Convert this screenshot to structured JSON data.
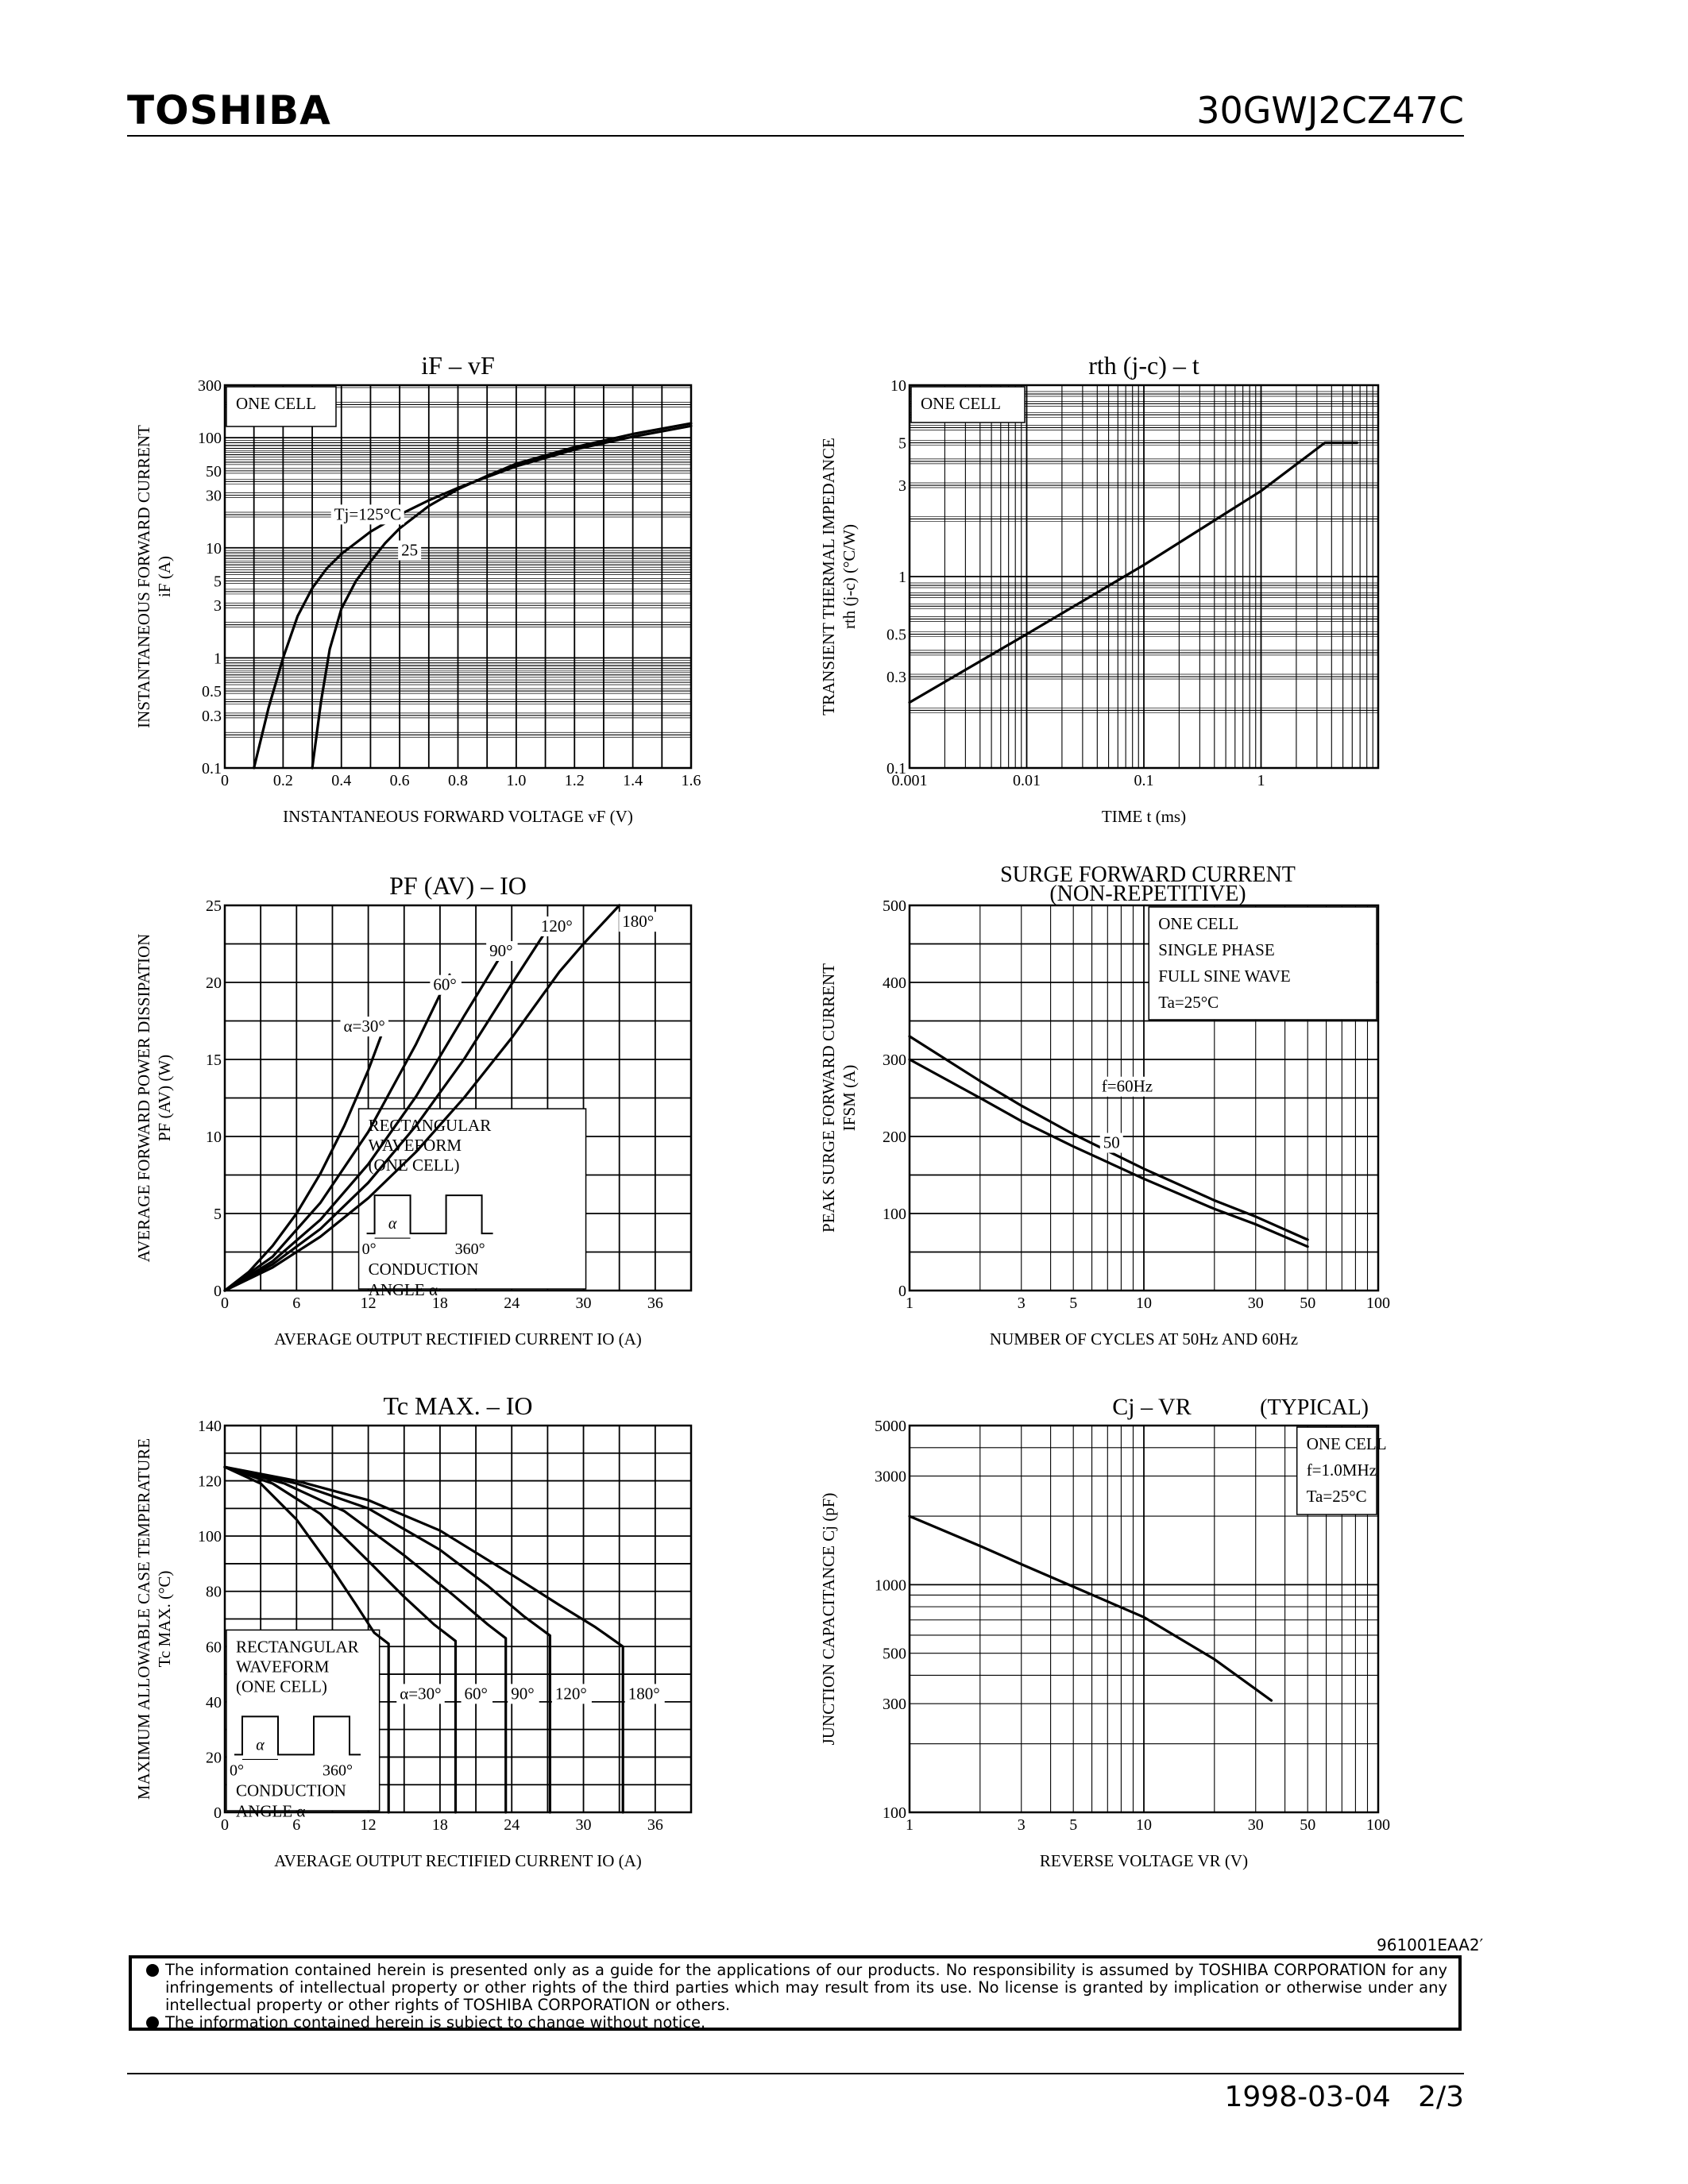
{
  "header": {
    "brand": "TOSHIBA",
    "part_number": "30GWJ2CZ47C"
  },
  "footer": {
    "doc_code": "961001EAA2′",
    "disclaimer_1": "The information contained herein is presented only as a guide for the applications of our products. No responsibility is assumed by TOSHIBA CORPORATION for any infringements of intellectual property or other rights of the third parties which may result from its use. No license is granted by implication or otherwise under any intellectual property or other rights of TOSHIBA CORPORATION or others.",
    "disclaimer_2": "The information contained herein is subject to change without notice.",
    "date": "1998-03-04",
    "page": "2/3"
  },
  "chart_data": [
    {
      "type": "line",
      "title": "iF – vF",
      "xlabel": "INSTANTANEOUS FORWARD VOLTAGE  vF  (V)",
      "ylabel": "INSTANTANEOUS FORWARD CURRENT",
      "ylabel2": "iF  (A)",
      "xscale": "linear",
      "yscale": "log",
      "xlim": [
        0,
        1.6
      ],
      "ylim": [
        0.1,
        300
      ],
      "xticks": [
        "0",
        "0.2",
        "0.4",
        "0.6",
        "0.8",
        "1.0",
        "1.2",
        "1.4",
        "1.6"
      ],
      "yticks": [
        "0.1",
        "0.3",
        "0.5",
        "1",
        "3",
        "5",
        "10",
        "30",
        "50",
        "100",
        "300"
      ],
      "box_text": [
        "ONE CELL"
      ],
      "series": [
        {
          "name": "Tj=125°C",
          "x": [
            0.1,
            0.15,
            0.2,
            0.25,
            0.3,
            0.35,
            0.4,
            0.5,
            0.6,
            0.7,
            0.8,
            0.9,
            1.0,
            1.2,
            1.4,
            1.6
          ],
          "y": [
            0.1,
            0.35,
            1.0,
            2.4,
            4.3,
            6.5,
            8.8,
            14,
            20,
            27,
            35,
            44,
            55,
            78,
            102,
            128
          ]
        },
        {
          "name": "25",
          "x": [
            0.3,
            0.33,
            0.36,
            0.4,
            0.45,
            0.5,
            0.55,
            0.6,
            0.7,
            0.8,
            0.9,
            1.0,
            1.2,
            1.4,
            1.6
          ],
          "y": [
            0.1,
            0.4,
            1.2,
            2.8,
            5,
            7.5,
            11,
            15,
            24,
            34,
            45,
            58,
            82,
            108,
            135
          ]
        }
      ]
    },
    {
      "type": "line",
      "title": "rth (j-c) – t",
      "xlabel": "TIME   t   (ms)",
      "ylabel": "TRANSIENT THERMAL IMPEDANCE",
      "ylabel2": "rth (j-c)   (°C/W)",
      "xscale": "log",
      "yscale": "log",
      "xlim": [
        0.001,
        10
      ],
      "ylim": [
        0.1,
        10
      ],
      "xticks": [
        "0.001",
        "0.01",
        "0.1",
        "1"
      ],
      "yticks": [
        "0.1",
        "0.3",
        "0.5",
        "1",
        "3",
        "5",
        "10"
      ],
      "box_text": [
        "ONE CELL"
      ],
      "series": [
        {
          "name": "",
          "x": [
            0.001,
            0.01,
            0.1,
            1,
            3.5,
            6.6
          ],
          "y": [
            0.22,
            0.5,
            1.15,
            2.8,
            5.0,
            5.0
          ]
        }
      ]
    },
    {
      "type": "line",
      "title": "PF (AV) – IO",
      "xlabel": "AVERAGE OUTPUT RECTIFIED CURRENT   IO   (A)",
      "ylabel": "AVERAGE FORWARD POWER DISSIPATION",
      "ylabel2": "PF (AV)   (W)",
      "xscale": "linear",
      "yscale": "linear",
      "xlim": [
        0,
        39
      ],
      "ylim": [
        0,
        25
      ],
      "xticks": [
        "0",
        "6",
        "12",
        "18",
        "24",
        "30",
        "36"
      ],
      "yticks": [
        "0",
        "5",
        "10",
        "15",
        "20",
        "25"
      ],
      "box_text": [
        "RECTANGULAR",
        "WAVEFORM",
        "(ONE CELL)"
      ],
      "inset_text": [
        "0°",
        "α",
        "360°",
        "CONDUCTION",
        "ANGLE α"
      ],
      "series": [
        {
          "name": "α=30°",
          "x": [
            0,
            2,
            4,
            6,
            8,
            10,
            12,
            13.3
          ],
          "y": [
            0,
            1.2,
            2.9,
            5,
            7.6,
            10.7,
            14.3,
            17
          ]
        },
        {
          "name": "60°",
          "x": [
            0,
            4,
            8,
            12,
            16,
            18.8
          ],
          "y": [
            0,
            2.2,
            5.7,
            10.3,
            16,
            20.5
          ]
        },
        {
          "name": "90°",
          "x": [
            0,
            4,
            8,
            12,
            16,
            20,
            23.3
          ],
          "y": [
            0,
            1.9,
            4.6,
            8.2,
            12.6,
            17.8,
            22
          ]
        },
        {
          "name": "120°",
          "x": [
            0,
            4,
            8,
            12,
            16,
            20,
            24,
            27
          ],
          "y": [
            0,
            1.7,
            4,
            7,
            10.7,
            15,
            19.9,
            23.5
          ]
        },
        {
          "name": "180°",
          "x": [
            0,
            4,
            8,
            12,
            16,
            20,
            24,
            28,
            30,
            33
          ],
          "y": [
            0,
            1.5,
            3.5,
            6,
            9,
            12.5,
            16.4,
            20.7,
            22.5,
            25
          ]
        }
      ]
    },
    {
      "type": "line",
      "title": "SURGE FORWARD CURRENT",
      "subtitle": "(NON-REPETITIVE)",
      "xlabel": "NUMBER OF CYCLES AT 50Hz AND 60Hz",
      "ylabel": "PEAK SURGE FORWARD CURRENT",
      "ylabel2": "IFSM   (A)",
      "xscale": "log",
      "yscale": "linear",
      "xlim": [
        1,
        100
      ],
      "ylim": [
        0,
        500
      ],
      "xticks": [
        "1",
        "3",
        "5",
        "10",
        "30",
        "50",
        "100"
      ],
      "yticks": [
        "0",
        "100",
        "200",
        "300",
        "400",
        "500"
      ],
      "box_text": [
        "ONE CELL",
        "SINGLE PHASE",
        "FULL SINE WAVE",
        "Ta=25°C"
      ],
      "series": [
        {
          "name": "f=60Hz",
          "x": [
            1,
            2,
            3,
            5,
            10,
            20,
            30,
            50
          ],
          "y": [
            330,
            272,
            240,
            203,
            158,
            117,
            96,
            66
          ]
        },
        {
          "name": "50",
          "x": [
            1,
            2,
            3,
            5,
            10,
            20,
            30,
            50
          ],
          "y": [
            300,
            250,
            220,
            187,
            145,
            106,
            86,
            57
          ]
        }
      ]
    },
    {
      "type": "line",
      "title": "Tc MAX. – IO",
      "xlabel": "AVERAGE OUTPUT RECTIFIED CURRENT   IO   (A)",
      "ylabel": "MAXIMUM ALLOWABLE CASE TEMPERATURE",
      "ylabel2": "Tc MAX.   (°C)",
      "xscale": "linear",
      "yscale": "linear",
      "xlim": [
        0,
        39
      ],
      "ylim": [
        0,
        140
      ],
      "xticks": [
        "0",
        "6",
        "12",
        "18",
        "24",
        "30",
        "36"
      ],
      "yticks": [
        "0",
        "20",
        "40",
        "60",
        "80",
        "100",
        "120",
        "140"
      ],
      "box_text": [
        "RECTANGULAR",
        "WAVEFORM",
        "(ONE CELL)"
      ],
      "inset_text": [
        "0°",
        "α",
        "360°",
        "CONDUCTION",
        "ANGLE α"
      ],
      "series": [
        {
          "name": "α=30°",
          "x": [
            0,
            3,
            6,
            9,
            11,
            12.5,
            13.7,
            13.7
          ],
          "y": [
            125,
            119,
            106,
            88,
            75,
            65,
            61,
            0
          ]
        },
        {
          "name": "60°",
          "x": [
            0,
            4,
            8,
            12,
            15,
            17.5,
            19.3,
            19.3
          ],
          "y": [
            125,
            119,
            108,
            91,
            78,
            68,
            62,
            0
          ]
        },
        {
          "name": "90°",
          "x": [
            0,
            5,
            10,
            15,
            19,
            22,
            23.5,
            23.5
          ],
          "y": [
            125,
            119,
            109,
            93,
            79,
            68,
            63,
            0
          ]
        },
        {
          "name": "120°",
          "x": [
            0,
            6,
            12,
            18,
            22,
            25,
            27.2,
            27.2
          ],
          "y": [
            125,
            119,
            110,
            95,
            82,
            71,
            64,
            0
          ]
        },
        {
          "name": "180°",
          "x": [
            0,
            6,
            12,
            18,
            24,
            28,
            31,
            33.3,
            33.3
          ],
          "y": [
            125,
            120,
            113,
            102,
            86,
            75,
            67,
            60,
            0
          ]
        }
      ]
    },
    {
      "type": "line",
      "title": "Cj – VR",
      "title_note": "(TYPICAL)",
      "xlabel": "REVERSE VOLTAGE   VR   (V)",
      "ylabel": "JUNCTION CAPACITANCE   Cj   (pF)",
      "xscale": "log",
      "yscale": "log",
      "xlim": [
        1,
        100
      ],
      "ylim": [
        100,
        5000
      ],
      "xticks": [
        "1",
        "3",
        "5",
        "10",
        "30",
        "50",
        "100"
      ],
      "yticks": [
        "100",
        "300",
        "500",
        "1000",
        "3000",
        "5000"
      ],
      "box_text": [
        "ONE CELL",
        "f=1.0MHz",
        "Ta=25°C"
      ],
      "series": [
        {
          "name": "",
          "x": [
            1,
            2,
            3,
            5,
            10,
            20,
            35
          ],
          "y": [
            2000,
            1480,
            1230,
            980,
            720,
            470,
            310
          ]
        }
      ]
    }
  ]
}
